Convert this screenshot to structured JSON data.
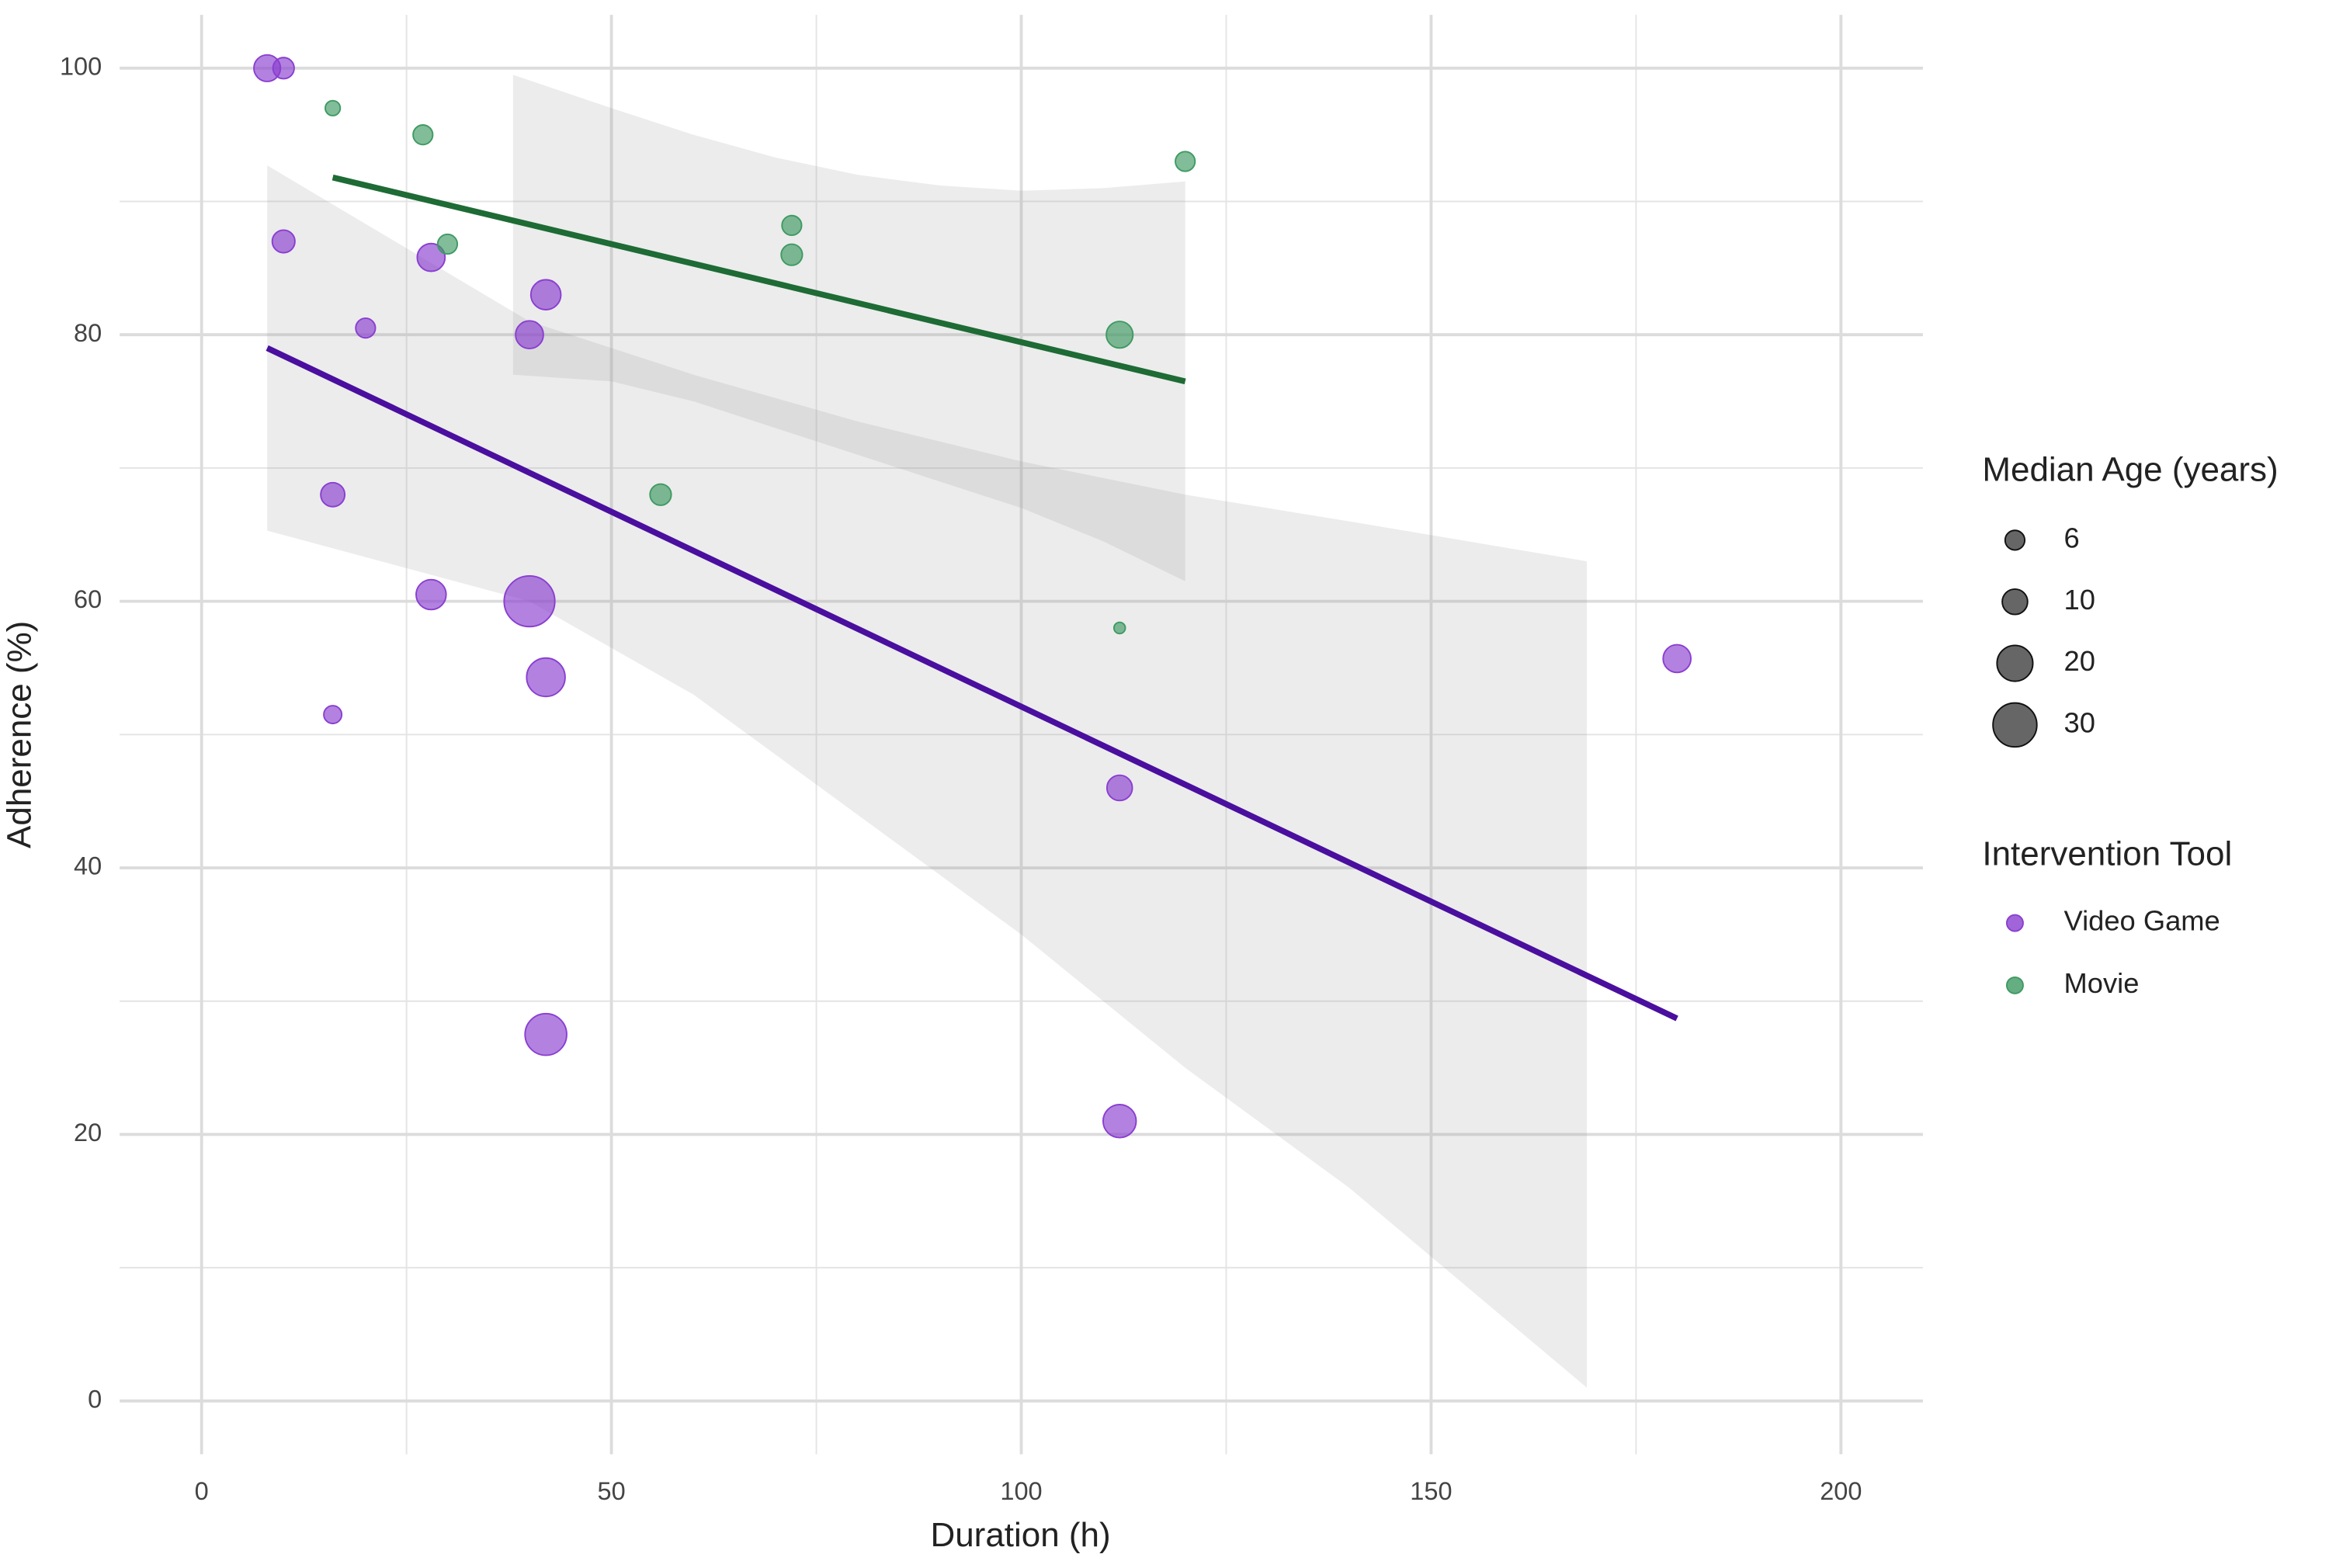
{
  "chart_data": {
    "type": "scatter",
    "x_label": "Duration (h)",
    "y_label": "Adherence (%)",
    "xlim": [
      -10,
      210
    ],
    "xticks": [
      0,
      50,
      100,
      150,
      200
    ],
    "xminor": [
      25,
      75,
      125,
      175
    ],
    "ylim": [
      -4,
      104
    ],
    "yticks": [
      0,
      20,
      40,
      60,
      80,
      100
    ],
    "yminor": [
      10,
      30,
      50,
      70,
      90
    ],
    "grid": true,
    "size_legend_title": "Median Age (years)",
    "size_legend": [
      6,
      10,
      20,
      30
    ],
    "legend_title": "Intervention Tool",
    "series": [
      {
        "name": "Video Game",
        "color": "#8a3fd0",
        "line_color": "#4a0f9e",
        "x": [
          8,
          10,
          10,
          20,
          16,
          28,
          28,
          16,
          40,
          42,
          40,
          42,
          42,
          112,
          112,
          180
        ],
        "values": [
          100,
          100,
          87,
          80.5,
          68,
          85.8,
          60.5,
          51.5,
          60,
          83,
          80,
          54.3,
          27.5,
          46,
          21,
          55.7
        ],
        "sizes": [
          11,
          7,
          8,
          6,
          9,
          12,
          14,
          5,
          40,
          14,
          12,
          23,
          27,
          10,
          17,
          12
        ],
        "fit": {
          "x": [
            8,
            180
          ],
          "values": [
            79,
            28.7
          ]
        },
        "ci": {
          "x": [
            8,
            40,
            60,
            80,
            100,
            120,
            140,
            169
          ],
          "upper": [
            92.7,
            81,
            77,
            73.5,
            70.5,
            68,
            66,
            63
          ],
          "lower": [
            65.3,
            60,
            53,
            44,
            35,
            25,
            16,
            1
          ]
        }
      },
      {
        "name": "Movie",
        "color": "#3f9a63",
        "line_color": "#1e6b35",
        "x": [
          16,
          27,
          30,
          72,
          72,
          56,
          112,
          112,
          120
        ],
        "values": [
          97,
          95,
          86.8,
          88.2,
          86,
          68,
          80,
          58,
          93
        ],
        "sizes": [
          3.5,
          6,
          6,
          6,
          7,
          7,
          11,
          2,
          6
        ],
        "fit": {
          "x": [
            16,
            120
          ],
          "values": [
            91.8,
            76.5
          ]
        },
        "ci": {
          "x": [
            38,
            50,
            60,
            70,
            80,
            90,
            100,
            110,
            120
          ],
          "upper": [
            99.5,
            97,
            95,
            93.3,
            92,
            91.2,
            90.8,
            91,
            91.5
          ],
          "lower": [
            77,
            76.5,
            75,
            73,
            71,
            69,
            67,
            64.5,
            61.5
          ]
        }
      }
    ]
  }
}
